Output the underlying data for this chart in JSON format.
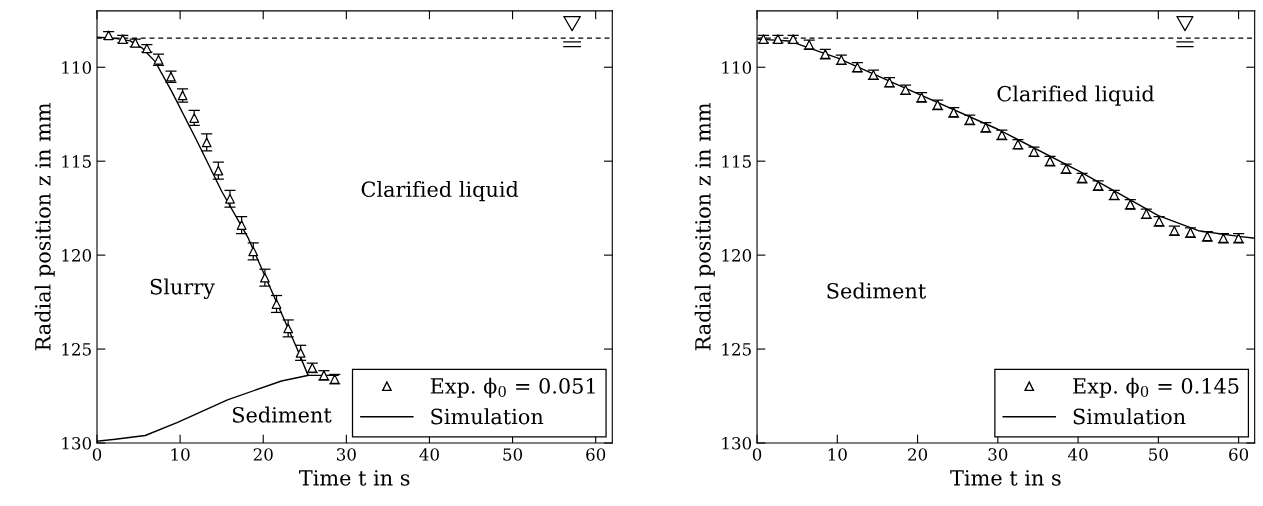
{
  "chart_data": [
    {
      "type": "scatter",
      "xlabel": "Time t in s",
      "ylabel": "Radial position z in mm",
      "xlim": [
        0,
        62
      ],
      "ylim": [
        130,
        107
      ],
      "xticks": [
        0,
        10,
        20,
        30,
        40,
        50,
        60
      ],
      "yticks": [
        110,
        115,
        120,
        125,
        130
      ],
      "grid": false,
      "legend": "bottom right",
      "ref_lines": [
        {
          "axis": "y",
          "value": 108.45,
          "line_style": "dashed",
          "color": "#000000"
        }
      ],
      "series": [
        {
          "name": "Exp. ϕ$_{0}$ = 0.051",
          "marker": "triangle",
          "color": "#000000",
          "x": [
            1.4,
            3.1,
            4.6,
            6.0,
            7.4,
            8.9,
            10.3,
            11.7,
            13.2,
            14.6,
            16.0,
            17.4,
            18.8,
            20.2,
            21.6,
            23.0,
            24.5,
            25.9,
            27.3,
            28.6
          ],
          "values": [
            108.3,
            108.5,
            108.7,
            109.0,
            109.6,
            110.5,
            111.5,
            112.7,
            114.0,
            115.5,
            117.0,
            118.4,
            119.8,
            121.2,
            122.6,
            123.9,
            125.2,
            126.0,
            126.4,
            126.6
          ],
          "errors": [
            0.2,
            0.2,
            0.2,
            0.2,
            0.3,
            0.3,
            0.35,
            0.4,
            0.45,
            0.45,
            0.45,
            0.45,
            0.45,
            0.45,
            0.45,
            0.45,
            0.4,
            0.25,
            0.25,
            0.25
          ]
        },
        {
          "name": "Simulation",
          "type": "line",
          "marker": "none",
          "line_style": "solid",
          "color": "#000000",
          "x": [
            0,
            2,
            4,
            5.5,
            7,
            9,
            12,
            15,
            18.2,
            21,
            24,
            25.4,
            29
          ],
          "values": [
            108.4,
            108.45,
            108.6,
            109.0,
            109.7,
            111.3,
            113.9,
            116.6,
            119.1,
            121.9,
            124.9,
            126.4,
            126.4
          ]
        },
        {
          "type": "line",
          "marker": "none",
          "line_style": "solid",
          "color": "#000000",
          "x": [
            0,
            2.2,
            5.8,
            9.7,
            15.7,
            22.2,
            25.4
          ],
          "values": [
            129.9,
            129.8,
            129.6,
            128.9,
            127.7,
            126.7,
            126.4
          ]
        }
      ],
      "annotations": [
        "Clarified liquid",
        "Slurry",
        "Sediment"
      ]
    },
    {
      "type": "scatter",
      "xlabel": "Time t in s",
      "ylabel": "Radial position z in mm",
      "xlim": [
        0,
        62
      ],
      "ylim": [
        130,
        107
      ],
      "xticks": [
        0,
        10,
        20,
        30,
        40,
        50,
        60
      ],
      "yticks": [
        110,
        115,
        120,
        125,
        130
      ],
      "grid": false,
      "legend": "bottom right",
      "ref_lines": [
        {
          "axis": "y",
          "value": 108.45,
          "line_style": "dashed",
          "color": "#000000"
        }
      ],
      "series": [
        {
          "name": "Exp. ϕ$_{0}$ = 0.145",
          "marker": "triangle",
          "color": "#000000",
          "x": [
            0.8,
            2.6,
            4.5,
            6.5,
            8.5,
            10.5,
            12.5,
            14.5,
            16.5,
            18.5,
            20.5,
            22.5,
            24.5,
            26.5,
            28.5,
            30.5,
            32.5,
            34.5,
            36.5,
            38.5,
            40.5,
            42.5,
            44.5,
            46.5,
            48.5,
            50.1,
            52.0,
            54.0,
            56.1,
            58.1,
            60.0
          ],
          "values": [
            108.5,
            108.5,
            108.5,
            108.8,
            109.3,
            109.6,
            110.0,
            110.4,
            110.8,
            111.2,
            111.6,
            112.0,
            112.4,
            112.8,
            113.2,
            113.6,
            114.1,
            114.5,
            115.0,
            115.4,
            115.9,
            116.3,
            116.8,
            117.3,
            117.8,
            118.2,
            118.7,
            118.8,
            119.0,
            119.1,
            119.1
          ],
          "errors": [
            0.2,
            0.2,
            0.2,
            0.25,
            0.25,
            0.25,
            0.25,
            0.25,
            0.25,
            0.25,
            0.25,
            0.25,
            0.25,
            0.25,
            0.25,
            0.25,
            0.25,
            0.25,
            0.25,
            0.25,
            0.25,
            0.25,
            0.25,
            0.25,
            0.25,
            0.25,
            0.25,
            0.25,
            0.25,
            0.25,
            0.25
          ]
        },
        {
          "name": "Simulation",
          "type": "line",
          "marker": "none",
          "line_style": "solid",
          "color": "#000000",
          "x": [
            0,
            4,
            6,
            10,
            20,
            30,
            40,
            45,
            50,
            55,
            60,
            62
          ],
          "values": [
            108.5,
            108.6,
            108.9,
            109.5,
            111.4,
            113.3,
            115.5,
            116.7,
            117.9,
            118.7,
            119.0,
            119.1
          ]
        }
      ],
      "annotations": [
        "Clarified liquid",
        "Sediment"
      ]
    }
  ]
}
